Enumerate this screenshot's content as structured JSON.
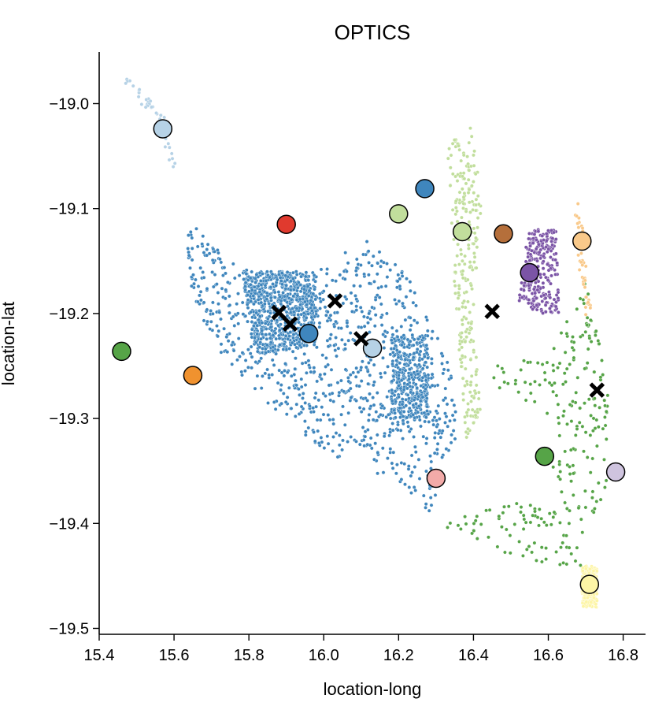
{
  "chart_data": {
    "type": "scatter",
    "title": "OPTICS",
    "xlabel": "location-long",
    "ylabel": "location-lat",
    "xlim": [
      15.35,
      16.87
    ],
    "ylim": [
      -19.505,
      -18.95
    ],
    "x_ticks": [
      15.4,
      15.6,
      15.8,
      16.0,
      16.2,
      16.4,
      16.6,
      16.8
    ],
    "x_tick_labels": [
      "15.4",
      "15.6",
      "15.8",
      "16.0",
      "16.2",
      "16.4",
      "16.6",
      "16.8"
    ],
    "y_ticks": [
      -19.0,
      -19.1,
      -19.2,
      -19.3,
      -19.4,
      -19.5
    ],
    "y_tick_labels": [
      "−19.0",
      "−19.1",
      "−19.2",
      "−19.3",
      "−19.4",
      "−19.5"
    ],
    "grid": false,
    "colors": {
      "blue_dark": "#3f86bd",
      "blue_light": "#b6d2e6",
      "green_light": "#c1de9c",
      "green_dark": "#56a447",
      "purple": "#7b54a6",
      "orange_light": "#f9c98a",
      "yellow": "#fdf5a6",
      "red": "#e03a2e"
    },
    "point_clusters": [
      {
        "color": "#3f86bd",
        "region": [
          [
            15.62,
            -19.1
          ],
          [
            15.72,
            -19.14
          ],
          [
            15.8,
            -19.16
          ],
          [
            15.98,
            -19.16
          ],
          [
            16.06,
            -19.14
          ],
          [
            16.12,
            -19.13
          ],
          [
            16.22,
            -19.16
          ],
          [
            16.34,
            -19.25
          ],
          [
            16.36,
            -19.32
          ],
          [
            16.3,
            -19.35
          ],
          [
            16.3,
            -19.4
          ],
          [
            16.2,
            -19.36
          ],
          [
            16.05,
            -19.34
          ],
          [
            15.92,
            -19.31
          ],
          [
            15.78,
            -19.26
          ],
          [
            15.68,
            -19.22
          ],
          [
            15.64,
            -19.17
          ]
        ],
        "dense": [
          [
            15.78,
            -19.16
          ],
          [
            15.98,
            -19.16
          ],
          [
            15.98,
            -19.23
          ],
          [
            15.82,
            -19.24
          ]
        ],
        "dense2": [
          [
            16.18,
            -19.22
          ],
          [
            16.28,
            -19.22
          ],
          [
            16.28,
            -19.3
          ],
          [
            16.18,
            -19.3
          ]
        ]
      },
      {
        "color": "#b6d2e6",
        "line": [
          [
            15.47,
            -18.975
          ],
          [
            15.53,
            -19.0
          ],
          [
            15.57,
            -19.02
          ],
          [
            15.6,
            -19.06
          ]
        ]
      },
      {
        "color": "#c1de9c",
        "region": [
          [
            16.33,
            -19.04
          ],
          [
            16.4,
            -19.02
          ],
          [
            16.42,
            -19.1
          ],
          [
            16.4,
            -19.2
          ],
          [
            16.42,
            -19.3
          ],
          [
            16.38,
            -19.32
          ],
          [
            16.35,
            -19.18
          ],
          [
            16.34,
            -19.1
          ]
        ]
      },
      {
        "color": "#56a447",
        "region": [
          [
            16.43,
            -19.25
          ],
          [
            16.6,
            -19.24
          ],
          [
            16.7,
            -19.17
          ],
          [
            16.76,
            -19.26
          ],
          [
            16.76,
            -19.36
          ],
          [
            16.7,
            -19.44
          ],
          [
            16.6,
            -19.44
          ],
          [
            16.5,
            -19.43
          ],
          [
            16.3,
            -19.4
          ],
          [
            16.45,
            -19.38
          ],
          [
            16.6,
            -19.38
          ],
          [
            16.62,
            -19.3
          ],
          [
            16.52,
            -19.28
          ],
          [
            16.45,
            -19.27
          ]
        ]
      },
      {
        "color": "#7b54a6",
        "region": [
          [
            16.54,
            -19.12
          ],
          [
            16.62,
            -19.12
          ],
          [
            16.63,
            -19.2
          ],
          [
            16.58,
            -19.2
          ],
          [
            16.52,
            -19.19
          ],
          [
            16.54,
            -19.14
          ]
        ]
      },
      {
        "color": "#f9c98a",
        "line": [
          [
            16.68,
            -19.1
          ],
          [
            16.69,
            -19.15
          ],
          [
            16.71,
            -19.2
          ]
        ]
      },
      {
        "color": "#fdf5a6",
        "region": [
          [
            16.69,
            -19.44
          ],
          [
            16.73,
            -19.44
          ],
          [
            16.73,
            -19.48
          ],
          [
            16.69,
            -19.48
          ]
        ]
      }
    ],
    "cluster_centers": [
      {
        "x": 15.57,
        "y": -19.024,
        "color": "#b6d2e6"
      },
      {
        "x": 15.9,
        "y": -19.115,
        "color": "#e03a2e"
      },
      {
        "x": 16.2,
        "y": -19.105,
        "color": "#c1de9c"
      },
      {
        "x": 16.27,
        "y": -19.081,
        "color": "#3f86bd"
      },
      {
        "x": 16.37,
        "y": -19.122,
        "color": "#c1de9c"
      },
      {
        "x": 16.48,
        "y": -19.124,
        "color": "#b56f3b"
      },
      {
        "x": 16.55,
        "y": -19.161,
        "color": "#7b54a6"
      },
      {
        "x": 16.69,
        "y": -19.131,
        "color": "#f9c98a"
      },
      {
        "x": 15.96,
        "y": -19.219,
        "color": "#3f86bd"
      },
      {
        "x": 16.13,
        "y": -19.233,
        "color": "#b6d2e6"
      },
      {
        "x": 15.46,
        "y": -19.236,
        "color": "#56a447"
      },
      {
        "x": 15.65,
        "y": -19.259,
        "color": "#f0922f"
      },
      {
        "x": 16.3,
        "y": -19.357,
        "color": "#f2aaa8"
      },
      {
        "x": 16.59,
        "y": -19.336,
        "color": "#56a447"
      },
      {
        "x": 16.78,
        "y": -19.351,
        "color": "#cfc4df"
      },
      {
        "x": 16.71,
        "y": -19.458,
        "color": "#fdf5a6"
      }
    ],
    "x_markers": [
      {
        "x": 15.88,
        "y": -19.199
      },
      {
        "x": 15.91,
        "y": -19.21
      },
      {
        "x": 16.03,
        "y": -19.188
      },
      {
        "x": 16.1,
        "y": -19.224
      },
      {
        "x": 16.45,
        "y": -19.198
      },
      {
        "x": 16.73,
        "y": -19.273
      }
    ]
  }
}
